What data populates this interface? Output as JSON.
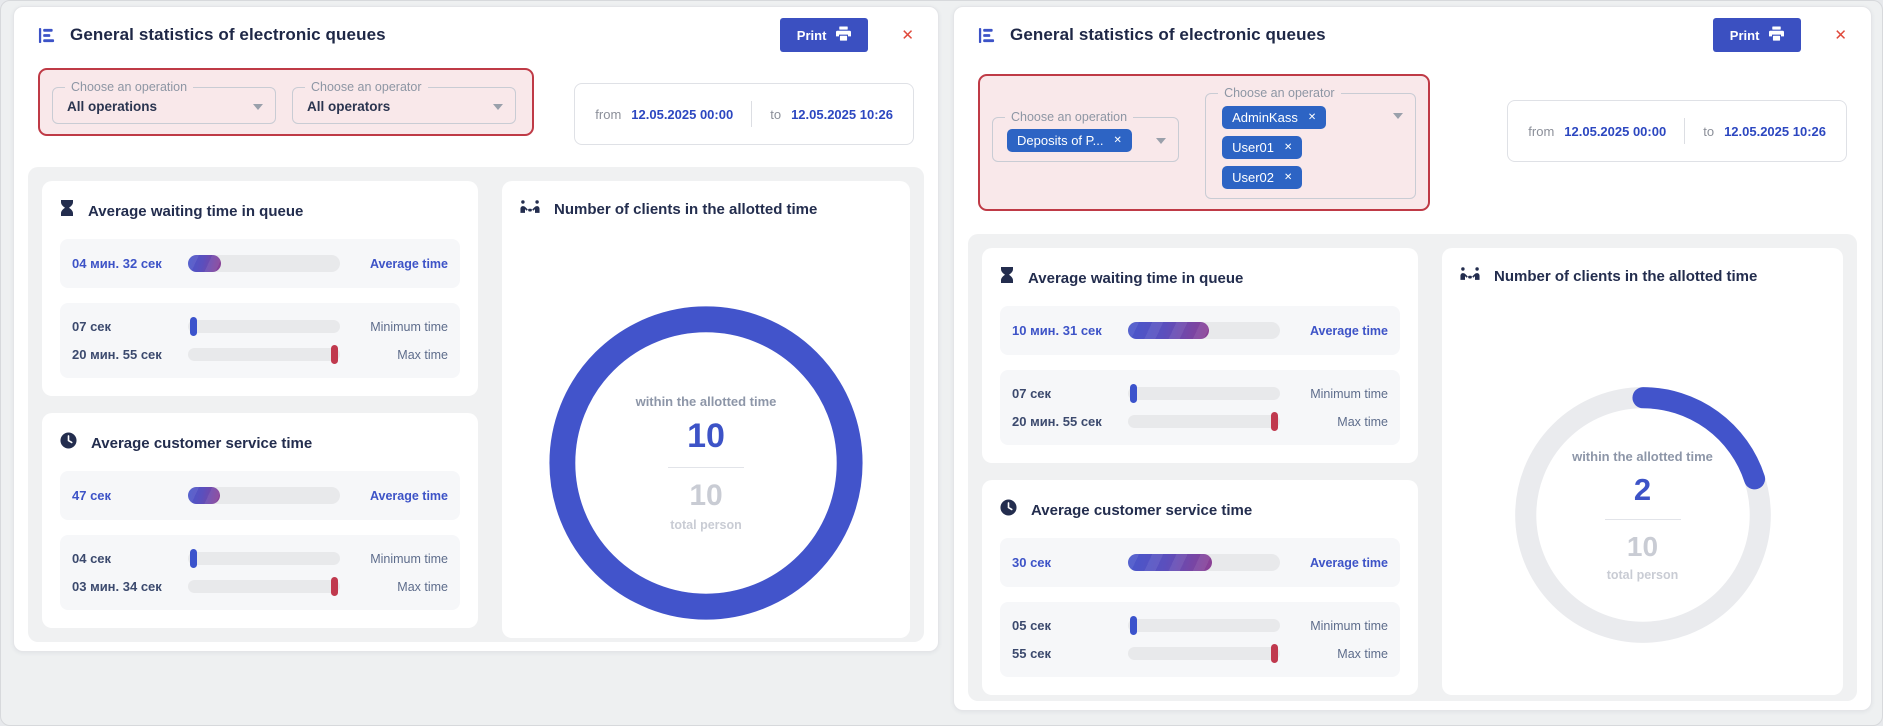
{
  "colors": {
    "accent": "#3d53c7",
    "chip_blue": "#2d64c4",
    "alert_border_red": "#bf3a46",
    "max_marker_red": "#c0394e",
    "min_marker_blue": "#3b53cc",
    "pink_filter_bg": "#f9e8ea",
    "print_button_blue": "#3b50c1"
  },
  "panels": [
    {
      "header": {
        "title": "General statistics of electronic queues",
        "print_label": "Print",
        "close_icon": "✕"
      },
      "filters": {
        "operation": {
          "legend": "Choose an operation",
          "value": "All operations"
        },
        "operator": {
          "legend": "Choose an operator",
          "value": "All operators"
        }
      },
      "date_range": {
        "from_label": "from",
        "from_value": "12.05.2025 00:00",
        "to_label": "to",
        "to_value": "12.05.2025 10:26"
      },
      "cards": {
        "waiting": {
          "title": "Average waiting time in queue",
          "rows": [
            {
              "value": "04 мин. 32 сек",
              "label": "Average time",
              "fill_pct": 22
            },
            {
              "value": "07 сек",
              "label": "Minimum time"
            },
            {
              "value": "20 мин. 55 сек",
              "label": "Max time"
            }
          ]
        },
        "service": {
          "title": "Average customer service time",
          "rows": [
            {
              "value": "47 сек",
              "label": "Average time",
              "fill_pct": 21
            },
            {
              "value": "04 сек",
              "label": "Minimum time"
            },
            {
              "value": "03 мин. 34 сек",
              "label": "Max time"
            }
          ]
        },
        "clients": {
          "title": "Number of clients in the allotted time",
          "within_label": "within the allotted time",
          "within_value": 10,
          "total_value": 10,
          "total_label": "total person"
        }
      }
    },
    {
      "header": {
        "title": "General statistics of electronic queues",
        "print_label": "Print",
        "close_icon": "✕"
      },
      "filters": {
        "operation": {
          "legend": "Choose an operation",
          "chips": [
            {
              "label": "Deposits of P...",
              "remove_icon": "✕"
            }
          ]
        },
        "operator": {
          "legend": "Choose an operator",
          "chips": [
            {
              "label": "AdminKass",
              "remove_icon": "✕"
            },
            {
              "label": "User01",
              "remove_icon": "✕"
            },
            {
              "label": "User02",
              "remove_icon": "✕"
            }
          ]
        }
      },
      "date_range": {
        "from_label": "from",
        "from_value": "12.05.2025 00:00",
        "to_label": "to",
        "to_value": "12.05.2025 10:26"
      },
      "cards": {
        "waiting": {
          "title": "Average waiting time in queue",
          "rows": [
            {
              "value": "10 мин. 31 сек",
              "label": "Average time",
              "fill_pct": 53
            },
            {
              "value": "07 сек",
              "label": "Minimum time"
            },
            {
              "value": "20 мин. 55 сек",
              "label": "Max time"
            }
          ]
        },
        "service": {
          "title": "Average customer service time",
          "rows": [
            {
              "value": "30 сек",
              "label": "Average time",
              "fill_pct": 55
            },
            {
              "value": "05 сек",
              "label": "Minimum time"
            },
            {
              "value": "55 сек",
              "label": "Max time"
            }
          ]
        },
        "clients": {
          "title": "Number of clients in the allotted time",
          "within_label": "within the allotted time",
          "within_value": 2,
          "total_value": 10,
          "total_label": "total person"
        }
      }
    }
  ]
}
